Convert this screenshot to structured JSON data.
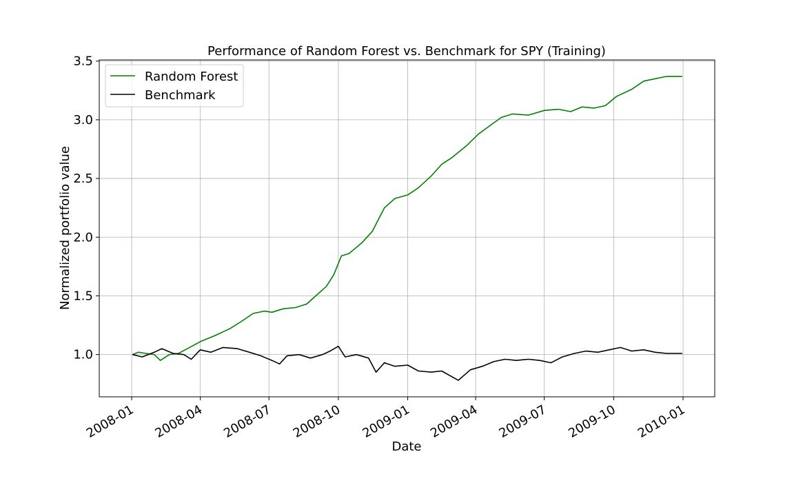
{
  "chart_data": {
    "type": "line",
    "title": "Performance of Random Forest vs. Benchmark for SPY (Training)",
    "xlabel": "Date",
    "ylabel": "Normalized portfolio value",
    "xlim": [
      "2007-11-19",
      "2010-02-12"
    ],
    "ylim": [
      0.64,
      3.51
    ],
    "x_ticks": [
      "2008-01",
      "2008-04",
      "2008-07",
      "2008-10",
      "2009-01",
      "2009-04",
      "2009-07",
      "2009-10",
      "2010-01"
    ],
    "y_ticks": [
      1.0,
      1.5,
      2.0,
      2.5,
      3.0,
      3.5
    ],
    "y_tick_labels": [
      "1.0",
      "1.5",
      "2.0",
      "2.5",
      "3.0",
      "3.5"
    ],
    "grid": true,
    "legend_position": "top-left",
    "series": [
      {
        "name": "Random Forest",
        "color": "#008000",
        "points": [
          [
            "2008-01-02",
            1.0
          ],
          [
            "2008-01-10",
            1.02
          ],
          [
            "2008-01-20",
            1.01
          ],
          [
            "2008-01-31",
            1.0
          ],
          [
            "2008-02-08",
            0.95
          ],
          [
            "2008-02-20",
            1.0
          ],
          [
            "2008-03-03",
            1.01
          ],
          [
            "2008-03-15",
            1.05
          ],
          [
            "2008-04-01",
            1.11
          ],
          [
            "2008-04-20",
            1.16
          ],
          [
            "2008-05-10",
            1.22
          ],
          [
            "2008-05-25",
            1.28
          ],
          [
            "2008-06-10",
            1.35
          ],
          [
            "2008-06-25",
            1.37
          ],
          [
            "2008-07-05",
            1.36
          ],
          [
            "2008-07-20",
            1.39
          ],
          [
            "2008-08-05",
            1.4
          ],
          [
            "2008-08-20",
            1.43
          ],
          [
            "2008-09-01",
            1.5
          ],
          [
            "2008-09-15",
            1.58
          ],
          [
            "2008-09-25",
            1.68
          ],
          [
            "2008-10-05",
            1.84
          ],
          [
            "2008-10-15",
            1.86
          ],
          [
            "2008-11-01",
            1.95
          ],
          [
            "2008-11-15",
            2.05
          ],
          [
            "2008-12-01",
            2.25
          ],
          [
            "2008-12-15",
            2.33
          ],
          [
            "2009-01-01",
            2.36
          ],
          [
            "2009-01-15",
            2.42
          ],
          [
            "2009-02-01",
            2.52
          ],
          [
            "2009-02-15",
            2.62
          ],
          [
            "2009-03-01",
            2.68
          ],
          [
            "2009-03-20",
            2.78
          ],
          [
            "2009-04-05",
            2.88
          ],
          [
            "2009-04-20",
            2.95
          ],
          [
            "2009-05-05",
            3.02
          ],
          [
            "2009-05-20",
            3.05
          ],
          [
            "2009-06-10",
            3.04
          ],
          [
            "2009-07-01",
            3.08
          ],
          [
            "2009-07-20",
            3.09
          ],
          [
            "2009-08-05",
            3.07
          ],
          [
            "2009-08-20",
            3.11
          ],
          [
            "2009-09-05",
            3.1
          ],
          [
            "2009-09-20",
            3.12
          ],
          [
            "2009-10-05",
            3.2
          ],
          [
            "2009-10-25",
            3.26
          ],
          [
            "2009-11-10",
            3.33
          ],
          [
            "2009-11-25",
            3.35
          ],
          [
            "2009-12-10",
            3.37
          ],
          [
            "2009-12-31",
            3.37
          ]
        ]
      },
      {
        "name": "Benchmark",
        "color": "#000000",
        "points": [
          [
            "2008-01-02",
            1.0
          ],
          [
            "2008-01-15",
            0.98
          ],
          [
            "2008-01-31",
            1.02
          ],
          [
            "2008-02-10",
            1.05
          ],
          [
            "2008-02-25",
            1.01
          ],
          [
            "2008-03-10",
            1.0
          ],
          [
            "2008-03-20",
            0.96
          ],
          [
            "2008-04-01",
            1.04
          ],
          [
            "2008-04-15",
            1.02
          ],
          [
            "2008-05-01",
            1.06
          ],
          [
            "2008-05-20",
            1.05
          ],
          [
            "2008-06-05",
            1.02
          ],
          [
            "2008-06-20",
            0.99
          ],
          [
            "2008-07-05",
            0.95
          ],
          [
            "2008-07-15",
            0.92
          ],
          [
            "2008-07-25",
            0.99
          ],
          [
            "2008-08-10",
            1.0
          ],
          [
            "2008-08-25",
            0.97
          ],
          [
            "2008-09-10",
            1.0
          ],
          [
            "2008-09-20",
            1.03
          ],
          [
            "2008-10-01",
            1.07
          ],
          [
            "2008-10-10",
            0.98
          ],
          [
            "2008-10-25",
            1.0
          ],
          [
            "2008-11-10",
            0.97
          ],
          [
            "2008-11-20",
            0.85
          ],
          [
            "2008-12-01",
            0.93
          ],
          [
            "2008-12-15",
            0.9
          ],
          [
            "2009-01-01",
            0.91
          ],
          [
            "2009-01-15",
            0.86
          ],
          [
            "2009-02-01",
            0.85
          ],
          [
            "2009-02-15",
            0.86
          ],
          [
            "2009-03-09",
            0.78
          ],
          [
            "2009-03-25",
            0.87
          ],
          [
            "2009-04-10",
            0.9
          ],
          [
            "2009-04-25",
            0.94
          ],
          [
            "2009-05-10",
            0.96
          ],
          [
            "2009-05-25",
            0.95
          ],
          [
            "2009-06-10",
            0.96
          ],
          [
            "2009-06-25",
            0.95
          ],
          [
            "2009-07-10",
            0.93
          ],
          [
            "2009-07-25",
            0.98
          ],
          [
            "2009-08-10",
            1.01
          ],
          [
            "2009-08-25",
            1.03
          ],
          [
            "2009-09-10",
            1.02
          ],
          [
            "2009-09-25",
            1.04
          ],
          [
            "2009-10-10",
            1.06
          ],
          [
            "2009-10-25",
            1.03
          ],
          [
            "2009-11-10",
            1.04
          ],
          [
            "2009-11-25",
            1.02
          ],
          [
            "2009-12-10",
            1.01
          ],
          [
            "2009-12-31",
            1.01
          ]
        ]
      }
    ]
  }
}
